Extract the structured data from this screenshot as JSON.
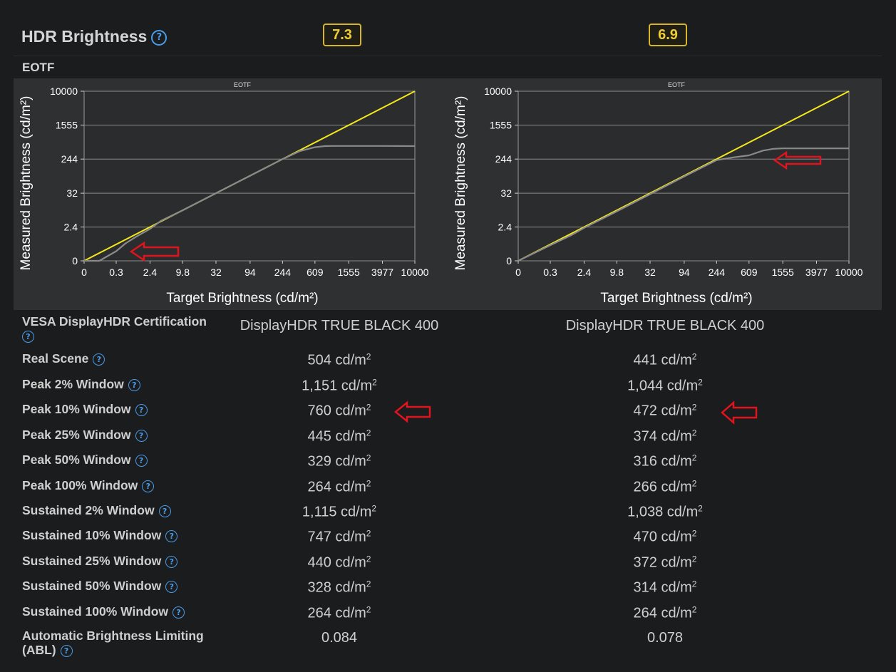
{
  "header": {
    "title": "HDR Brightness",
    "help_glyph": "?",
    "score_left": "7.3",
    "score_right": "6.9"
  },
  "section": {
    "label": "EOTF"
  },
  "colors": {
    "background": "#1b1c1d",
    "chart_background": "#2f3031",
    "target_line": "#f3e81b",
    "measured_line": "#8a8a8a",
    "score_border": "#d8b52a",
    "help_icon": "#4a9be8",
    "annotation_arrow": "#e0141e"
  },
  "chart_data": [
    {
      "type": "line",
      "title": "EOTF",
      "xlabel": "Target Brightness (cd/m²)",
      "ylabel": "Measured Brightness (cd/m²)",
      "x_ticks": [
        "0",
        "0.3",
        "2.4",
        "9.8",
        "32",
        "94",
        "244",
        "609",
        "1555",
        "3977",
        "10000"
      ],
      "y_ticks": [
        "0",
        "2.4",
        "32",
        "244",
        "1555",
        "10000"
      ],
      "x_scale": "PQ (tick labels 0 to 10000)",
      "y_scale": "PQ (tick labels 0 to 10000)",
      "grid": "horizontal",
      "series": [
        {
          "role": "target",
          "x": [
            0,
            10000
          ],
          "y": [
            0,
            10000
          ]
        },
        {
          "role": "measured",
          "x": [
            0,
            0.05,
            0.3,
            0.6,
            1.2,
            2.4,
            4,
            9.8,
            32,
            94,
            180,
            244,
            400,
            609,
            800,
            1000,
            1555,
            3977,
            10000
          ],
          "y": [
            0,
            0,
            0.08,
            0.35,
            0.9,
            2.0,
            4.2,
            9.8,
            32,
            94,
            180,
            244,
            380,
            470,
            500,
            504,
            504,
            504,
            500
          ]
        }
      ]
    },
    {
      "type": "line",
      "title": "EOTF",
      "xlabel": "Target Brightness (cd/m²)",
      "ylabel": "Measured Brightness (cd/m²)",
      "x_ticks": [
        "0",
        "0.3",
        "2.4",
        "9.8",
        "32",
        "94",
        "244",
        "609",
        "1555",
        "3977",
        "10000"
      ],
      "y_ticks": [
        "0",
        "2.4",
        "32",
        "244",
        "1555",
        "10000"
      ],
      "x_scale": "PQ (tick labels 0 to 10000)",
      "y_scale": "PQ (tick labels 0 to 10000)",
      "grid": "horizontal",
      "series": [
        {
          "role": "target",
          "x": [
            0,
            10000
          ],
          "y": [
            0,
            10000
          ]
        },
        {
          "role": "measured",
          "x": [
            0,
            0.3,
            1.2,
            2.4,
            9.8,
            32,
            94,
            244,
            400,
            609,
            900,
            1200,
            1555,
            3977,
            10000
          ],
          "y": [
            0,
            0.26,
            1.0,
            2.2,
            9.0,
            30,
            90,
            230,
            270,
            300,
            390,
            430,
            441,
            441,
            441
          ]
        }
      ]
    }
  ],
  "rows": [
    {
      "label": "VESA DisplayHDR Certification",
      "left": "DisplayHDR TRUE BLACK 400",
      "right": "DisplayHDR TRUE BLACK 400",
      "unit": ""
    },
    {
      "label": "Real Scene",
      "left": "504 cd/m",
      "right": "441 cd/m",
      "unit": "2"
    },
    {
      "label": "Peak 2% Window",
      "left": "1,151 cd/m",
      "right": "1,044 cd/m",
      "unit": "2"
    },
    {
      "label": "Peak 10% Window",
      "left": "760 cd/m",
      "right": "472 cd/m",
      "unit": "2"
    },
    {
      "label": "Peak 25% Window",
      "left": "445 cd/m",
      "right": "374 cd/m",
      "unit": "2"
    },
    {
      "label": "Peak 50% Window",
      "left": "329 cd/m",
      "right": "316 cd/m",
      "unit": "2"
    },
    {
      "label": "Peak 100% Window",
      "left": "264 cd/m",
      "right": "266 cd/m",
      "unit": "2"
    },
    {
      "label": "Sustained 2% Window",
      "left": "1,115 cd/m",
      "right": "1,038 cd/m",
      "unit": "2"
    },
    {
      "label": "Sustained 10% Window",
      "left": "747 cd/m",
      "right": "470 cd/m",
      "unit": "2"
    },
    {
      "label": "Sustained 25% Window",
      "left": "440 cd/m",
      "right": "372 cd/m",
      "unit": "2"
    },
    {
      "label": "Sustained 50% Window",
      "left": "328 cd/m",
      "right": "314 cd/m",
      "unit": "2"
    },
    {
      "label": "Sustained 100% Window",
      "left": "264 cd/m",
      "right": "264 cd/m",
      "unit": "2"
    },
    {
      "label": "Automatic Brightness Limiting (ABL)",
      "left": "0.084",
      "right": "0.078",
      "unit": ""
    }
  ]
}
